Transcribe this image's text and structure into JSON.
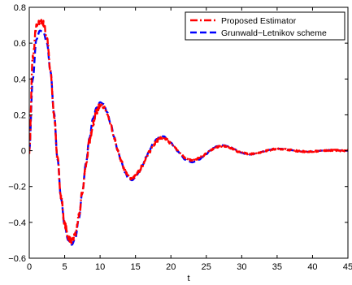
{
  "chart_data": {
    "type": "line",
    "title": "",
    "xlabel": "t",
    "ylabel": "",
    "xlim": [
      0,
      45
    ],
    "ylim": [
      -0.6,
      0.8
    ],
    "x_ticks": [
      0,
      5,
      10,
      15,
      20,
      25,
      30,
      35,
      40,
      45
    ],
    "y_ticks": [
      -0.6,
      -0.4,
      -0.2,
      0,
      0.2,
      0.4,
      0.6,
      0.8
    ],
    "x_tick_labels": [
      "0",
      "5",
      "10",
      "15",
      "20",
      "25",
      "30",
      "35",
      "40",
      "45"
    ],
    "y_tick_labels": [
      "−0.6",
      "−0.4",
      "−0.2",
      "0",
      "0.2",
      "0.4",
      "0.6",
      "0.8"
    ],
    "grid": false,
    "legend_position": "top-right",
    "x": [
      0,
      0.5,
      1,
      1.5,
      2,
      2.5,
      3,
      3.5,
      4,
      4.5,
      5,
      5.5,
      6,
      6.5,
      7,
      7.5,
      8,
      8.5,
      9,
      9.5,
      10,
      10.5,
      11,
      11.5,
      12,
      12.5,
      13,
      13.5,
      14,
      14.5,
      15,
      15.5,
      16,
      16.5,
      17,
      17.5,
      18,
      18.5,
      19,
      19.5,
      20,
      20.5,
      21,
      21.5,
      22,
      22.5,
      23,
      23.5,
      24,
      24.5,
      25,
      25.5,
      26,
      26.5,
      27,
      27.5,
      28,
      28.5,
      29,
      29.5,
      30,
      30.5,
      31,
      31.5,
      32,
      32.5,
      33,
      33.5,
      34,
      34.5,
      35,
      35.5,
      36,
      36.5,
      37,
      37.5,
      38,
      38.5,
      39,
      39.5,
      40,
      40.5,
      41,
      41.5,
      42,
      42.5,
      43,
      43.5,
      44,
      44.5,
      45
    ],
    "series": [
      {
        "name": "Proposed Estimator",
        "color": "#ff0000",
        "dash": "dash-dot",
        "noisy": true,
        "values": [
          0.0,
          0.52,
          0.69,
          0.72,
          0.71,
          0.63,
          0.44,
          0.2,
          -0.05,
          -0.26,
          -0.41,
          -0.48,
          -0.51,
          -0.47,
          -0.37,
          -0.23,
          -0.08,
          0.05,
          0.15,
          0.22,
          0.255,
          0.245,
          0.205,
          0.14,
          0.07,
          0.0,
          -0.06,
          -0.11,
          -0.145,
          -0.155,
          -0.14,
          -0.115,
          -0.08,
          -0.04,
          -0.005,
          0.03,
          0.055,
          0.07,
          0.07,
          0.06,
          0.04,
          0.02,
          0.0,
          -0.02,
          -0.04,
          -0.05,
          -0.055,
          -0.05,
          -0.04,
          -0.03,
          -0.015,
          0.0,
          0.01,
          0.02,
          0.025,
          0.025,
          0.02,
          0.015,
          0.005,
          -0.005,
          -0.01,
          -0.015,
          -0.02,
          -0.018,
          -0.014,
          -0.01,
          -0.005,
          0.0,
          0.004,
          0.008,
          0.009,
          0.01,
          0.008,
          0.006,
          0.003,
          0.0,
          -0.002,
          -0.004,
          -0.005,
          -0.005,
          -0.004,
          -0.003,
          -0.002,
          0.0,
          0.001,
          0.002,
          0.002,
          0.002,
          0.0,
          -0.002,
          0.0
        ],
        "raw_x": [
          0,
          0.5,
          1,
          1.5,
          2,
          2.5,
          3,
          3.5,
          4,
          4.5,
          5,
          5.5,
          6,
          6.5,
          7,
          7.5,
          8,
          8.5,
          9,
          9.5,
          10,
          10.5,
          11,
          11.5,
          12,
          12.5,
          13,
          13.5,
          14,
          14.5,
          15,
          15.5,
          16,
          16.5,
          17,
          17.5,
          18,
          18.5,
          19,
          19.5,
          20,
          20.5,
          21,
          21.5,
          22,
          22.5,
          23,
          23.5,
          24,
          24.5,
          25,
          25.5,
          26,
          26.5,
          27,
          27.5,
          28,
          28.5,
          29,
          29.5,
          30,
          30.5,
          31,
          31.5,
          32,
          32.5,
          33,
          33.5,
          34,
          34.5,
          35,
          35.5,
          36,
          36.5,
          37,
          37.5,
          38,
          38.5,
          39,
          39.5,
          40,
          40.5,
          41,
          41.5,
          42,
          42.5,
          43,
          43.5,
          44,
          44.5,
          45
        ]
      },
      {
        "name": "Grunwald−Letnikov scheme",
        "color": "#0000ff",
        "dash": "dashed",
        "noisy": false,
        "values": [
          0.0,
          0.4,
          0.62,
          0.67,
          0.66,
          0.6,
          0.44,
          0.21,
          -0.05,
          -0.27,
          -0.42,
          -0.5,
          -0.525,
          -0.49,
          -0.38,
          -0.23,
          -0.07,
          0.07,
          0.18,
          0.24,
          0.27,
          0.26,
          0.215,
          0.15,
          0.075,
          0.0,
          -0.065,
          -0.12,
          -0.155,
          -0.165,
          -0.15,
          -0.12,
          -0.08,
          -0.035,
          0.005,
          0.04,
          0.065,
          0.08,
          0.08,
          0.065,
          0.045,
          0.02,
          -0.005,
          -0.03,
          -0.05,
          -0.06,
          -0.065,
          -0.06,
          -0.05,
          -0.035,
          -0.02,
          0.0,
          0.015,
          0.025,
          0.03,
          0.03,
          0.025,
          0.018,
          0.008,
          -0.003,
          -0.012,
          -0.018,
          -0.022,
          -0.02,
          -0.016,
          -0.011,
          -0.005,
          0.0,
          0.005,
          0.009,
          0.011,
          0.011,
          0.009,
          0.006,
          0.003,
          0.0,
          -0.003,
          -0.005,
          -0.006,
          -0.006,
          -0.005,
          -0.003,
          -0.001,
          0.001,
          0.002,
          0.003,
          0.003,
          0.002,
          0.001,
          -0.001,
          0.0
        ]
      }
    ]
  }
}
